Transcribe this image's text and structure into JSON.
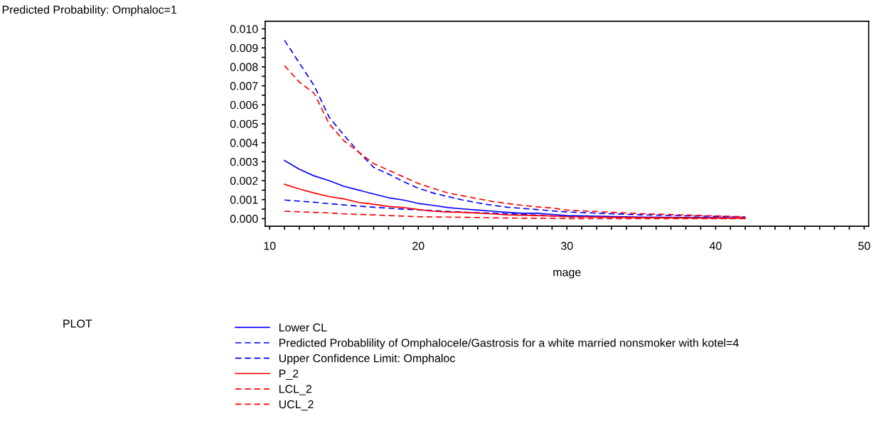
{
  "chart_data": {
    "type": "line",
    "ylabel": "Predicted Probability: Omphaloc=1",
    "xlabel": "mage",
    "legend_title": "PLOT",
    "legend": "bottom",
    "marker": "none",
    "xlim": [
      9.7,
      50.3
    ],
    "ylim": [
      -0.0004,
      0.0104
    ],
    "xticks": [
      10,
      {
        "value": 11,
        "label": null
      },
      {
        "value": 12,
        "label": null
      },
      {
        "value": 13,
        "label": null
      },
      {
        "value": 14,
        "label": null
      },
      {
        "value": 15,
        "label": null
      },
      {
        "value": 16,
        "label": null
      },
      {
        "value": 17,
        "label": null
      },
      {
        "value": 18,
        "label": null
      },
      {
        "value": 19,
        "label": null
      },
      20,
      {
        "value": 21,
        "label": null
      },
      {
        "value": 22,
        "label": null
      },
      {
        "value": 23,
        "label": null
      },
      {
        "value": 24,
        "label": null
      },
      {
        "value": 25,
        "label": null
      },
      {
        "value": 26,
        "label": null
      },
      {
        "value": 27,
        "label": null
      },
      {
        "value": 28,
        "label": null
      },
      {
        "value": 29,
        "label": null
      },
      30,
      {
        "value": 31,
        "label": null
      },
      {
        "value": 32,
        "label": null
      },
      {
        "value": 33,
        "label": null
      },
      {
        "value": 34,
        "label": null
      },
      {
        "value": 35,
        "label": null
      },
      {
        "value": 36,
        "label": null
      },
      {
        "value": 37,
        "label": null
      },
      {
        "value": 38,
        "label": null
      },
      {
        "value": 39,
        "label": null
      },
      40,
      {
        "value": 41,
        "label": null
      },
      {
        "value": 42,
        "label": null
      },
      {
        "value": 43,
        "label": null
      },
      {
        "value": 44,
        "label": null
      },
      {
        "value": 45,
        "label": null
      },
      {
        "value": 46,
        "label": null
      },
      {
        "value": 47,
        "label": null
      },
      {
        "value": 48,
        "label": null
      },
      {
        "value": 49,
        "label": null
      },
      50
    ],
    "yticks": [
      {
        "value": 0,
        "label": "0.000"
      },
      {
        "value": 0.0005,
        "label": null
      },
      {
        "value": 0.001,
        "label": "0.001"
      },
      {
        "value": 0.0015,
        "label": null
      },
      {
        "value": 0.002,
        "label": "0.002"
      },
      {
        "value": 0.0025,
        "label": null
      },
      {
        "value": 0.003,
        "label": "0.003"
      },
      {
        "value": 0.0035,
        "label": null
      },
      {
        "value": 0.004,
        "label": "0.004"
      },
      {
        "value": 0.0045,
        "label": null
      },
      {
        "value": 0.005,
        "label": "0.005"
      },
      {
        "value": 0.0055,
        "label": null
      },
      {
        "value": 0.006,
        "label": "0.006"
      },
      {
        "value": 0.0065,
        "label": null
      },
      {
        "value": 0.007,
        "label": "0.007"
      },
      {
        "value": 0.0075,
        "label": null
      },
      {
        "value": 0.008,
        "label": "0.008"
      },
      {
        "value": 0.0085,
        "label": null
      },
      {
        "value": 0.009,
        "label": "0.009"
      },
      {
        "value": 0.0095,
        "label": null
      },
      {
        "value": 0.01,
        "label": "0.010"
      }
    ],
    "x": [
      11,
      12,
      13,
      14,
      15,
      16,
      17,
      18,
      19,
      20,
      21,
      22,
      23,
      24,
      25,
      26,
      27,
      28,
      29,
      30,
      35,
      40,
      42
    ],
    "series": [
      {
        "name": "Lower CL",
        "color": "#0000ff",
        "line_style": "solid",
        "values": [
          0.00306,
          0.0026,
          0.00225,
          0.002,
          0.0017,
          0.0015,
          0.0013,
          0.0011,
          0.00098,
          0.0008,
          0.0007,
          0.00058,
          0.00051,
          0.00045,
          0.00039,
          0.00033,
          0.00028,
          0.00028,
          0.00022,
          0.00016,
          8e-05,
          5e-05,
          3e-05
        ]
      },
      {
        "name": "Predicted Probablility of Omphalocele/Gastrosis for a white married nonsmoker with kotel=4",
        "color": "#0000ff",
        "line_style": "dashed",
        "values": [
          0.00098,
          0.00092,
          0.00086,
          0.00079,
          0.00072,
          0.00066,
          0.0006,
          0.00055,
          0.0005,
          0.00046,
          0.00042,
          0.00038,
          0.00034,
          0.00031,
          0.00029,
          0.00025,
          0.00022,
          0.00018,
          0.00014,
          0.0001,
          5e-05,
          3e-05,
          2e-05
        ]
      },
      {
        "name": "Upper Confidence Limit: Omphaloc",
        "color": "#0000ff",
        "line_style": "dashed",
        "values": [
          0.0094,
          0.0082,
          0.007,
          0.00535,
          0.0044,
          0.0035,
          0.0027,
          0.00235,
          0.00195,
          0.0016,
          0.00135,
          0.00116,
          0.00098,
          0.00083,
          0.0007,
          0.0006,
          0.00054,
          0.00048,
          0.00041,
          0.00035,
          0.0002,
          0.00012,
          8e-05
        ]
      },
      {
        "name": "P_2",
        "color": "#ff0000",
        "line_style": "solid",
        "values": [
          0.00181,
          0.00156,
          0.00135,
          0.00116,
          0.00104,
          0.00085,
          0.00076,
          0.00064,
          0.00058,
          0.00048,
          0.00039,
          0.00035,
          0.00033,
          0.00029,
          0.00025,
          0.0002,
          0.00018,
          0.00016,
          0.00014,
          0.0001,
          5e-05,
          3e-05,
          3e-05
        ]
      },
      {
        "name": "LCL_2",
        "color": "#ff0000",
        "line_style": "dashed",
        "values": [
          0.00039,
          0.00036,
          0.00033,
          0.0003,
          0.00025,
          0.00022,
          0.0002,
          0.00016,
          0.00013,
          0.0001,
          9e-05,
          8e-05,
          7e-05,
          6e-05,
          4e-05,
          3e-05,
          2e-05,
          2e-05,
          1e-05,
          0.0,
          0.0,
          0.0,
          0.0
        ]
      },
      {
        "name": "UCL_2",
        "color": "#ff0000",
        "line_style": "dashed",
        "values": [
          0.00806,
          0.0072,
          0.0066,
          0.005,
          0.0041,
          0.0035,
          0.0029,
          0.00255,
          0.0022,
          0.00185,
          0.0016,
          0.00135,
          0.0012,
          0.00105,
          0.0009,
          0.0008,
          0.0007,
          0.00062,
          0.00056,
          0.00045,
          0.00026,
          0.00014,
          0.0001
        ]
      }
    ]
  }
}
